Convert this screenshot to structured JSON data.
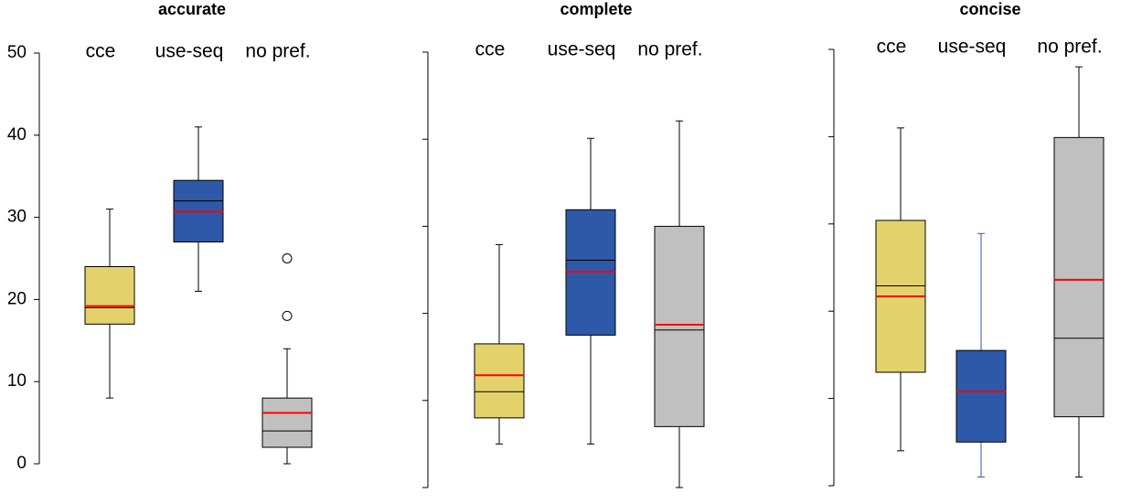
{
  "chart_data": [
    {
      "type": "box",
      "title": "accurate",
      "categories": [
        "cce",
        "use-seq",
        "no pref."
      ],
      "boxes": [
        {
          "min": 8,
          "q1": 17,
          "median": 19,
          "mean": 19.2,
          "q3": 24,
          "max": 31,
          "color": "#e3d26c",
          "line_color": "#000000"
        },
        {
          "min": 21,
          "q1": 27,
          "median": 32,
          "mean": 30.7,
          "q3": 34.5,
          "max": 41,
          "color": "#2e58a8",
          "line_color": "#000000"
        },
        {
          "min": 0,
          "q1": 2,
          "median": 4,
          "mean": 6.2,
          "q3": 8,
          "max": 14,
          "outliers": [
            25,
            18
          ],
          "color": "#c0c0c0",
          "line_color": "#000000"
        }
      ],
      "mean_color": "#ff0000",
      "ylim": [
        0,
        50
      ],
      "yticks": [
        0,
        10,
        20,
        30,
        40,
        50
      ],
      "tick_labels": true
    },
    {
      "type": "box",
      "title": "complete",
      "categories": [
        "cce",
        "use-seq",
        "no pref."
      ],
      "boxes": [
        {
          "min": 5,
          "q1": 8,
          "median": 11,
          "mean": 12.9,
          "q3": 16.5,
          "max": 27.9,
          "color": "#e3d26c",
          "line_color": "#000000"
        },
        {
          "min": 5,
          "q1": 17.5,
          "median": 26.1,
          "mean": 24.8,
          "q3": 31.9,
          "max": 40.1,
          "color": "#2e58a8",
          "line_color": "#000000"
        },
        {
          "min": 0,
          "q1": 7,
          "median": 18.1,
          "mean": 18.7,
          "q3": 30,
          "max": 42.1,
          "color": "#c0c0c0",
          "line_color": "#000000"
        }
      ],
      "mean_color": "#ff0000",
      "ylim": [
        0,
        50
      ],
      "yticks": [
        0,
        10,
        20,
        30,
        40,
        50
      ],
      "tick_labels": false
    },
    {
      "type": "box",
      "title": "concise",
      "categories": [
        "cce",
        "use-seq",
        "no pref."
      ],
      "boxes": [
        {
          "min": 4,
          "q1": 13,
          "median": 22.9,
          "mean": 21.7,
          "q3": 30.4,
          "max": 41,
          "color": "#e3d26c",
          "line_color": "#000000"
        },
        {
          "min": 1,
          "q1": 5,
          "median": 10.8,
          "mean": 10.8,
          "q3": 15.5,
          "max": 28.9,
          "color": "#2e58a8",
          "line_color": "#2e58a8"
        },
        {
          "min": 1,
          "q1": 7.9,
          "median": 16.9,
          "mean": 23.6,
          "q3": 39.9,
          "max": 48,
          "color": "#c0c0c0",
          "line_color": "#000000"
        }
      ],
      "mean_color": "#ff0000",
      "ylim": [
        0,
        50
      ],
      "yticks": [
        0,
        10,
        20,
        30,
        40,
        50
      ],
      "tick_labels": false
    }
  ]
}
